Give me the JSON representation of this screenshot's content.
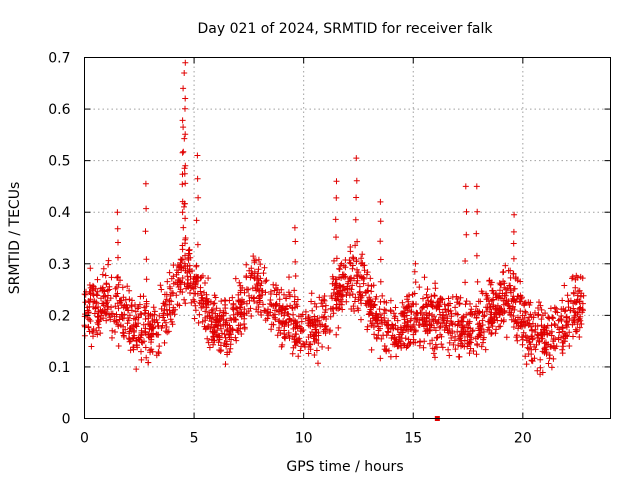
{
  "chart_data": {
    "type": "scatter",
    "title": "Day 021 of 2024, SRMTID for receiver falk",
    "xlabel": "GPS time / hours",
    "ylabel": "SRMTID / TECUs",
    "xlim": [
      0,
      24
    ],
    "ylim": [
      0,
      0.7
    ],
    "x_ticks": [
      0,
      5,
      10,
      15,
      20
    ],
    "x_tick_labels": [
      "0",
      "5",
      "10",
      "15",
      "20"
    ],
    "y_ticks": [
      0,
      0.1,
      0.2,
      0.3,
      0.4,
      0.5,
      0.6,
      0.7
    ],
    "y_tick_labels": [
      "0",
      "0.1",
      "0.2",
      "0.3",
      "0.4",
      "0.5",
      "0.6",
      "0.7"
    ],
    "grid": true,
    "marker": "plus",
    "color": "#e00000",
    "x_range_hours": [
      0.0,
      22.8
    ],
    "typical_range": [
      0.1,
      0.3
    ],
    "peaks": [
      {
        "x": 4.6,
        "y": 0.69
      },
      {
        "x": 4.55,
        "y": 0.67
      },
      {
        "x": 4.5,
        "y": 0.64
      },
      {
        "x": 4.5,
        "y": 0.565
      },
      {
        "x": 4.6,
        "y": 0.49
      },
      {
        "x": 5.15,
        "y": 0.51
      },
      {
        "x": 12.4,
        "y": 0.505
      },
      {
        "x": 11.5,
        "y": 0.46
      },
      {
        "x": 2.8,
        "y": 0.455
      },
      {
        "x": 17.4,
        "y": 0.45
      },
      {
        "x": 17.9,
        "y": 0.45
      },
      {
        "x": 13.5,
        "y": 0.42
      },
      {
        "x": 1.5,
        "y": 0.4
      },
      {
        "x": 19.6,
        "y": 0.395
      },
      {
        "x": 9.6,
        "y": 0.37
      },
      {
        "x": 15.1,
        "y": 0.3
      }
    ],
    "outlier": {
      "x": 16.1,
      "y": 0.0,
      "marker": "square"
    }
  }
}
